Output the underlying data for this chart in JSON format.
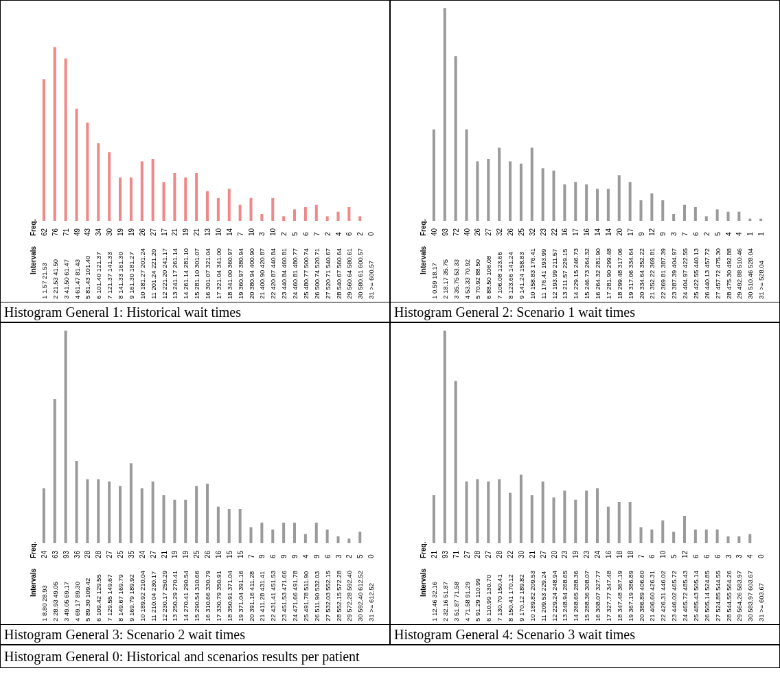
{
  "chart_data": [
    {
      "type": "bar",
      "title": "Histogram General 1: Historical wait times",
      "annotations": [
        "Intervals"
      ],
      "ylabel": "Freq.",
      "color": "#f08888",
      "data_labels": true,
      "categories": [
        "1 1.57 21.53",
        "2 21.53 41.50",
        "3 41.50 61.47",
        "4 61.47 81.43",
        "5 81.43 101.40",
        "6 101.40 121.37",
        "7 121.37 141.33",
        "8 141.33 161.30",
        "9 161.30 181.27",
        "10 181.27 201.24",
        "11 201.24 221.20",
        "12 221.20 241.17",
        "13 241.17 261.14",
        "14 261.14 281.10",
        "15 281.10 301.07",
        "16 301.07 321.04",
        "17 321.04 341.00",
        "18 341.00 360.97",
        "19 360.97 380.94",
        "20 380.94 400.90",
        "21 400.90 420.87",
        "22 420.87 440.84",
        "23 440.84 460.81",
        "24 460.81 480.77",
        "25 480.77 500.74",
        "26 500.74 520.71",
        "27 520.71 540.67",
        "28 540.67 560.64",
        "29 560.64 580.61",
        "30 580.61 600.57",
        "31 >= 600.57"
      ],
      "values": [
        62,
        76,
        71,
        49,
        43,
        34,
        30,
        19,
        19,
        26,
        27,
        17,
        21,
        19,
        21,
        13,
        10,
        14,
        7,
        10,
        3,
        10,
        2,
        5,
        6,
        7,
        2,
        4,
        6,
        2,
        0
      ]
    },
    {
      "type": "bar",
      "title": "Histogram General 2: Scenario 1 wait times",
      "annotations": [
        "Intervals"
      ],
      "ylabel": "Freq.",
      "color": "#9a9a9a",
      "data_labels": true,
      "categories": [
        "1 0.59 18.17",
        "2 18.17 35.75",
        "3 35.75 53.33",
        "4 53.33 70.92",
        "5 70.92 88.50",
        "6 88.50 106.08",
        "7 106.08 123.66",
        "8 123.66 141.24",
        "9 141.24 158.83",
        "10 158.83 176.41",
        "11 176.41 193.99",
        "12 193.99 211.57",
        "13 211.57 229.15",
        "14 229.15 246.73",
        "15 246.73 264.32",
        "16 264.32 281.90",
        "17 281.90 299.48",
        "18 299.48 317.06",
        "19 317.06 334.64",
        "20 334.64 352.22",
        "21 352.22 369.81",
        "22 369.81 387.39",
        "23 387.39 404.97",
        "24 404.97 422.55",
        "25 422.55 440.13",
        "26 440.13 457.72",
        "27 457.72 475.30",
        "28 475.30 492.88",
        "29 492.88 510.46",
        "30 510.46 528.04",
        "31 >= 528.04"
      ],
      "values": [
        40,
        93,
        72,
        40,
        26,
        27,
        32,
        26,
        25,
        32,
        23,
        22,
        16,
        17,
        16,
        14,
        14,
        20,
        17,
        9,
        12,
        9,
        3,
        7,
        6,
        2,
        5,
        4,
        4,
        1,
        1
      ]
    },
    {
      "type": "bar",
      "title": "Histogram General 3: Scenario 2 wait times",
      "annotations": [
        "Intervals"
      ],
      "ylabel": "Freq.",
      "color": "#9a9a9a",
      "data_labels": true,
      "categories": [
        "1 8.80 28.93",
        "2 28.93 49.05",
        "3 49.05 69.17",
        "4 69.17 89.30",
        "5 89.30 109.42",
        "6 109.42 129.55",
        "7 129.55 149.67",
        "8 149.67 169.79",
        "9 169.79 189.92",
        "10 189.92 210.04",
        "11 210.04 230.17",
        "12 230.17 250.29",
        "13 250.29 270.41",
        "14 270.41 290.54",
        "15 290.54 310.66",
        "16 310.66 330.79",
        "17 330.79 350.91",
        "18 350.91 371.04",
        "19 371.04 391.16",
        "20 391.16 411.28",
        "21 411.28 431.41",
        "22 431.41 451.53",
        "23 451.53 471.66",
        "24 471.66 491.78",
        "25 491.78 511.90",
        "26 511.90 532.03",
        "27 532.03 552.15",
        "28 552.15 572.28",
        "29 572.28 592.40",
        "30 592.40 612.52",
        "31 >= 612.52"
      ],
      "values": [
        24,
        63,
        93,
        36,
        28,
        28,
        27,
        25,
        35,
        24,
        27,
        21,
        19,
        19,
        25,
        26,
        16,
        15,
        15,
        7,
        9,
        6,
        9,
        9,
        4,
        9,
        6,
        3,
        2,
        5,
        0
      ]
    },
    {
      "type": "bar",
      "title": "Histogram General 4: Scenario 3 wait times",
      "ylabel": "Freq.",
      "color": "#9a9a9a",
      "data_labels": true,
      "categories": [
        "1 12.46 32.16",
        "2 32.16 51.87",
        "3 51.87 71.58",
        "4 71.58 91.29",
        "5 91.29 110.99",
        "6 110.99 130.70",
        "7 130.70 150.41",
        "8 150.41 170.12",
        "9 170.12 189.82",
        "10 189.82 209.53",
        "11 209.53 229.24",
        "12 229.24 248.94",
        "13 248.94 268.65",
        "14 268.65 288.36",
        "15 288.36 308.07",
        "16 308.07 327.77",
        "17 327.77 347.48",
        "18 347.48 367.19",
        "19 367.19 386.89",
        "20 386.89 406.60",
        "21 406.60 426.31",
        "22 426.31 446.02",
        "23 446.02 465.72",
        "24 465.72 485.43",
        "25 485.43 505.14",
        "26 505.14 524.85",
        "27 524.85 544.55",
        "28 544.55 564.26",
        "29 564.26 583.97",
        "30 583.97 603.67",
        "31 >= 603.67"
      ],
      "values": [
        21,
        93,
        71,
        27,
        28,
        27,
        28,
        22,
        30,
        21,
        27,
        20,
        23,
        19,
        23,
        24,
        16,
        18,
        18,
        7,
        6,
        10,
        5,
        12,
        6,
        6,
        6,
        3,
        3,
        4,
        0
      ],
      "annotations": [
        "Intervals",
        "Histogram General 0: Historical and scenarios results per patient"
      ]
    }
  ]
}
